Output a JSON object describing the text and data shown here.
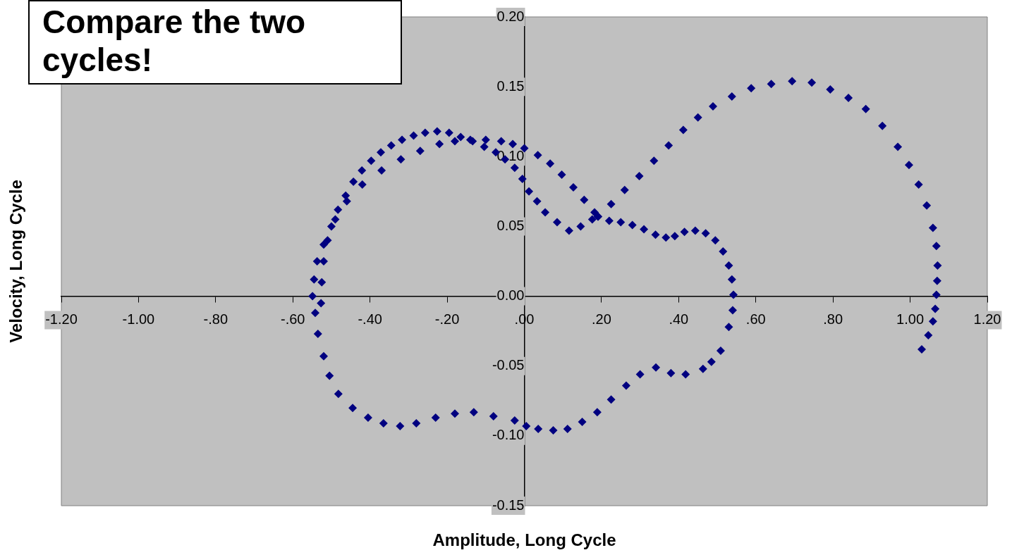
{
  "chart_data": {
    "type": "scatter",
    "xlabel": "Amplitude, Long Cycle",
    "ylabel": "Velocity, Long Cycle",
    "annotations": [
      "Compare the two cycles!"
    ],
    "marker": "diamond",
    "legend": false,
    "grid": false,
    "xlim": [
      -1.2,
      1.2
    ],
    "ylim": [
      -0.15,
      0.2
    ],
    "xticks": [
      {
        "value": -1.2,
        "label": "-1.20"
      },
      {
        "value": -1.0,
        "label": "-1.00"
      },
      {
        "value": -0.8,
        "label": "-.80"
      },
      {
        "value": -0.6,
        "label": "-.60"
      },
      {
        "value": -0.4,
        "label": "-.40"
      },
      {
        "value": -0.2,
        "label": "-.20"
      },
      {
        "value": 0,
        "label": ".00"
      },
      {
        "value": 0.2,
        "label": ".20"
      },
      {
        "value": 0.4,
        "label": ".40"
      },
      {
        "value": 0.6,
        "label": ".60"
      },
      {
        "value": 0.8,
        "label": ".80"
      },
      {
        "value": 1.0,
        "label": "1.00"
      },
      {
        "value": 1.2,
        "label": "1.20"
      }
    ],
    "yticks": [
      {
        "value": -0.15,
        "label": "-0.15"
      },
      {
        "value": -0.1,
        "label": "-0.10"
      },
      {
        "value": -0.05,
        "label": "-0.05"
      },
      {
        "value": 0,
        "label": "0.00"
      },
      {
        "value": 0.05,
        "label": "0.05"
      },
      {
        "value": 0.1,
        "label": "0.10"
      },
      {
        "value": 0.15,
        "label": "0.15"
      },
      {
        "value": 0.2,
        "label": "0.20"
      }
    ],
    "series": [
      {
        "color": "#000080",
        "x": [
          -0.527,
          -0.525,
          -0.52,
          -0.51,
          -0.49,
          -0.46,
          -0.42,
          -0.37,
          -0.32,
          -0.27,
          -0.22,
          -0.18,
          -0.14,
          -0.1,
          -0.06,
          -0.03,
          0.0,
          0.035,
          0.067,
          0.097,
          0.127,
          0.155,
          0.182,
          0.191,
          0.22,
          0.25,
          0.28,
          0.31,
          0.34,
          0.367,
          0.39,
          0.415,
          0.443,
          0.47,
          0.495,
          0.515,
          0.53,
          0.538,
          0.542,
          0.54,
          0.53,
          0.509,
          0.485,
          0.463,
          0.418,
          0.38,
          0.341,
          0.3,
          0.264,
          0.225,
          0.189,
          0.15,
          0.112,
          0.075,
          0.036,
          0.005,
          -0.025,
          -0.08,
          -0.131,
          -0.18,
          -0.23,
          -0.28,
          -0.322,
          -0.365,
          -0.405,
          -0.445,
          -0.482,
          -0.505,
          -0.52,
          -0.535,
          -0.542,
          -0.549,
          -0.545,
          -0.537,
          -0.52,
          -0.5,
          -0.483,
          -0.463,
          -0.443,
          -0.421,
          -0.397,
          -0.372,
          -0.345,
          -0.317,
          -0.287,
          -0.257,
          -0.226,
          -0.195,
          -0.165,
          -0.134,
          -0.104,
          -0.074,
          -0.05,
          -0.025,
          -0.005,
          0.012,
          0.033,
          0.054,
          0.085,
          0.116,
          0.146,
          0.176,
          0.191,
          0.225,
          0.26,
          0.298,
          0.336,
          0.374,
          0.412,
          0.45,
          0.489,
          0.538,
          0.588,
          0.64,
          0.694,
          0.745,
          0.793,
          0.84,
          0.885,
          0.928,
          0.968,
          0.997,
          1.022,
          1.043,
          1.059,
          1.068,
          1.071,
          1.07,
          1.068,
          1.065,
          1.059,
          1.047,
          1.03
        ],
        "values": [
          -0.005,
          0.01,
          0.025,
          0.04,
          0.055,
          0.068,
          0.08,
          0.09,
          0.098,
          0.104,
          0.109,
          0.111,
          0.112,
          0.112,
          0.111,
          0.109,
          0.106,
          0.101,
          0.095,
          0.087,
          0.078,
          0.069,
          0.06,
          0.057,
          0.054,
          0.053,
          0.051,
          0.048,
          0.044,
          0.042,
          0.043,
          0.046,
          0.047,
          0.045,
          0.04,
          0.032,
          0.022,
          0.012,
          0.001,
          -0.01,
          -0.022,
          -0.039,
          -0.047,
          -0.052,
          -0.056,
          -0.055,
          -0.051,
          -0.056,
          -0.064,
          -0.074,
          -0.083,
          -0.09,
          -0.095,
          -0.096,
          -0.095,
          -0.093,
          -0.089,
          -0.086,
          -0.083,
          -0.084,
          -0.087,
          -0.091,
          -0.093,
          -0.091,
          -0.087,
          -0.08,
          -0.07,
          -0.057,
          -0.043,
          -0.027,
          -0.012,
          0.0,
          0.012,
          0.025,
          0.037,
          0.05,
          0.062,
          0.072,
          0.082,
          0.09,
          0.097,
          0.103,
          0.108,
          0.112,
          0.115,
          0.117,
          0.118,
          0.117,
          0.114,
          0.111,
          0.107,
          0.103,
          0.098,
          0.092,
          0.084,
          0.075,
          0.068,
          0.06,
          0.053,
          0.047,
          0.05,
          0.055,
          0.057,
          0.066,
          0.076,
          0.086,
          0.097,
          0.108,
          0.119,
          0.128,
          0.136,
          0.143,
          0.149,
          0.152,
          0.154,
          0.153,
          0.148,
          0.142,
          0.134,
          0.122,
          0.107,
          0.094,
          0.08,
          0.065,
          0.049,
          0.036,
          0.022,
          0.011,
          0.001,
          -0.009,
          -0.018,
          -0.028,
          -0.038
        ]
      }
    ]
  }
}
